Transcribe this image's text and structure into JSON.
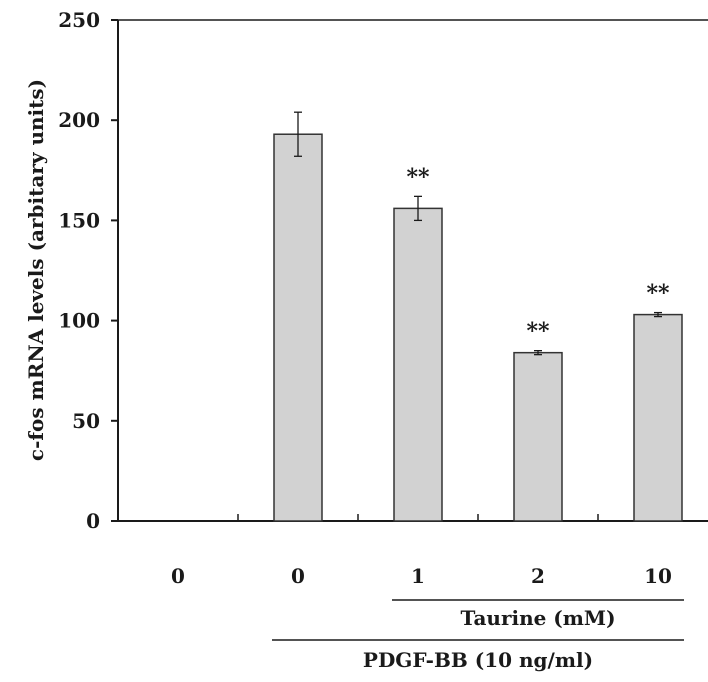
{
  "chart_data": {
    "type": "bar",
    "ylabel": "c-fos mRNA levels (arbitary units)",
    "ylim": [
      0,
      250
    ],
    "yticks": [
      0,
      50,
      100,
      150,
      200,
      250
    ],
    "categories": [
      "0",
      "0",
      "1",
      "2",
      "10"
    ],
    "values": [
      0,
      193,
      156,
      84,
      103
    ],
    "errors": [
      0,
      11,
      6,
      1,
      1
    ],
    "significance": [
      "",
      "",
      "**",
      "**",
      "**"
    ],
    "group_labels": [
      {
        "label": "Taurine (mM)",
        "from": 2,
        "to": 4
      },
      {
        "label": "PDGF-BB (10 ng/ml)",
        "from": 1,
        "to": 4
      }
    ],
    "colors": {
      "bar_fill": "#d2d2d2",
      "bar_stroke": "#333333",
      "axis": "#1a1a1a"
    },
    "grid": false
  }
}
